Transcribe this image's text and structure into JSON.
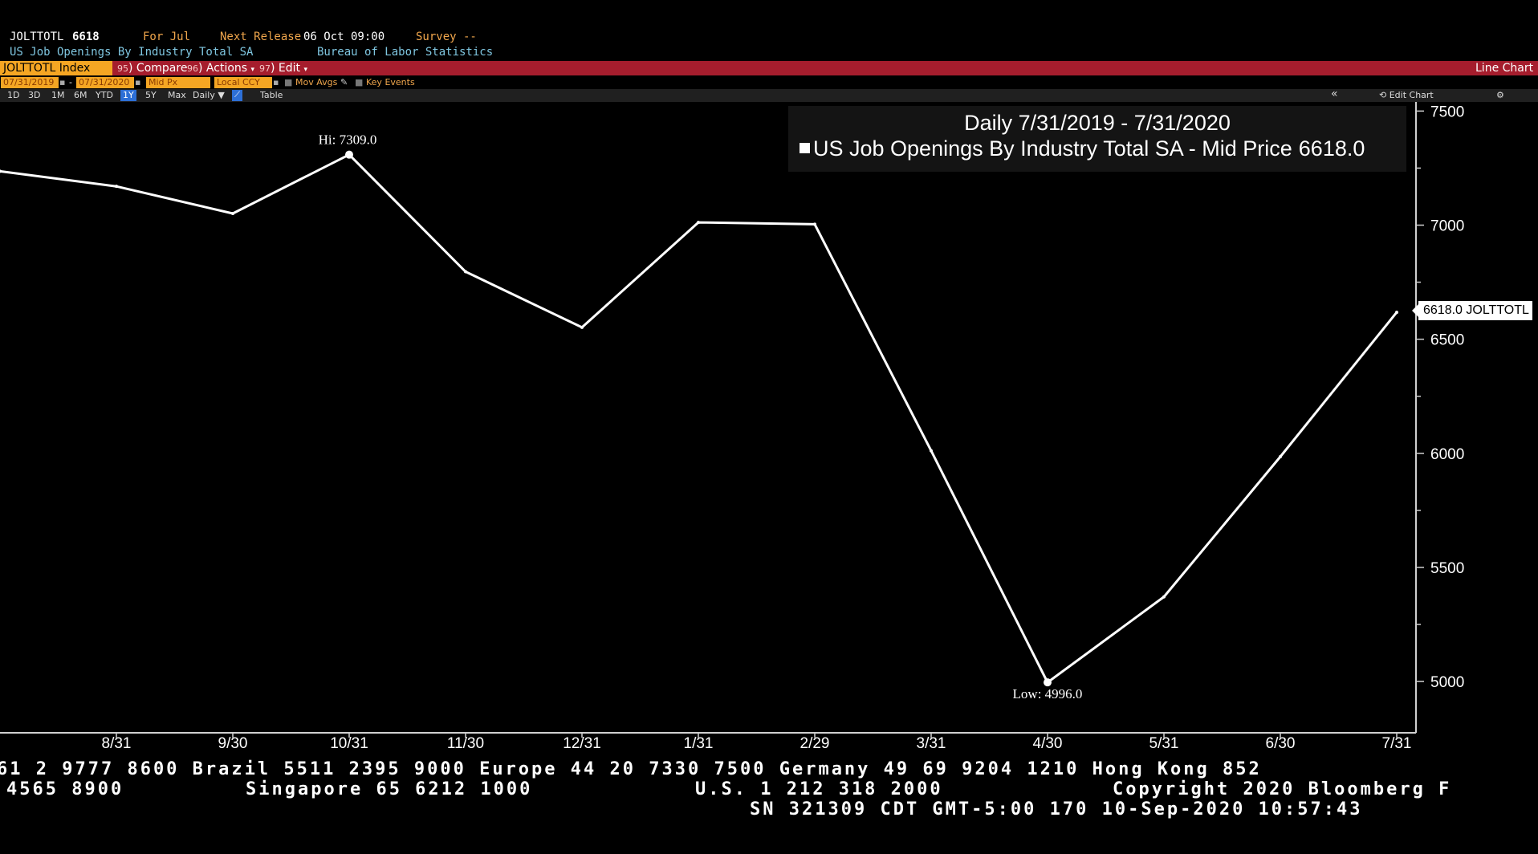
{
  "header": {
    "ticker": "JOLTTOTL",
    "last_value": "6618",
    "period": "For Jul",
    "next_release_label": "Next Release",
    "next_release_value": "06 Oct 09:00",
    "survey": "Survey --",
    "description": "US Job Openings By Industry Total SA",
    "source": "Bureau of Labor Statistics"
  },
  "toolbar": {
    "security": "JOLTTOTL Index",
    "compare": "Compare",
    "compare_code": "95",
    "actions": "Actions",
    "actions_code": "96",
    "edit": "Edit",
    "edit_code": "97",
    "chart_type": "Line Chart"
  },
  "controls": {
    "start_date": "07/31/2019",
    "end_date": "07/31/2020",
    "price_field": "Mid Px",
    "currency": "Local CCY",
    "mov_avgs": "Mov Avgs",
    "key_events": "Key Events",
    "ranges": [
      "1D",
      "3D",
      "1M",
      "6M",
      "YTD",
      "1Y",
      "5Y",
      "Max"
    ],
    "selected_range": "1Y",
    "frequency": "Daily",
    "table": "Table",
    "edit_chart": "Edit Chart",
    "collapse_icon": "double-chevron-left-icon",
    "settings_icon": "gear-icon"
  },
  "legend": {
    "title": "Daily 7/31/2019 - 7/31/2020",
    "series_label": "US Job Openings By Industry Total SA - Mid Price",
    "series_value": "6618.0"
  },
  "last_label": "6618.0 JOLTTOTL",
  "chart_data": {
    "type": "line",
    "x": [
      "7/31",
      "8/31",
      "9/30",
      "10/31",
      "11/30",
      "12/31",
      "1/31",
      "2/29",
      "3/31",
      "4/30",
      "5/31",
      "6/30",
      "7/31"
    ],
    "series": [
      {
        "name": "US Job Openings By Industry Total SA - Mid Price",
        "values": [
          7236,
          7170,
          7051,
          7309,
          6796,
          6552,
          7012,
          7004,
          6011,
          4996,
          5371,
          5985,
          6618
        ]
      }
    ],
    "xlabels": [
      "8/31",
      "9/30",
      "10/31",
      "11/30",
      "12/31",
      "1/31",
      "2/29",
      "3/31",
      "4/30",
      "5/31",
      "6/30",
      "7/31"
    ],
    "yticks": [
      5000,
      5500,
      6000,
      6500,
      7000,
      7500
    ],
    "ylim": [
      4775,
      7540
    ],
    "y_axis_side": "right",
    "high_label": "Hi: 7309.0",
    "low_label": "Low: 4996.0",
    "line_color": "#ffffff",
    "background": "#000000",
    "grid": false
  },
  "footer": {
    "line1": "61 2 9777 8600 Brazil 5511 2395 9000 Europe 44 20 7330 7500 Germany 49 69 9204 1210 Hong Kong 852",
    "line2_a": "4565 8900",
    "line2_b": "Singapore 65 6212 1000",
    "line2_c": "U.S. 1 212 318 2000",
    "line2_d": "Copyright 2020 Bloomberg F",
    "line3": "SN 321309 CDT  GMT-5:00 170 10-Sep-2020 10:57:43"
  },
  "colors": {
    "accent_orange": "#f5a623",
    "toolbar_red": "#a51d2d",
    "header_teal": "#7fc6e0"
  }
}
